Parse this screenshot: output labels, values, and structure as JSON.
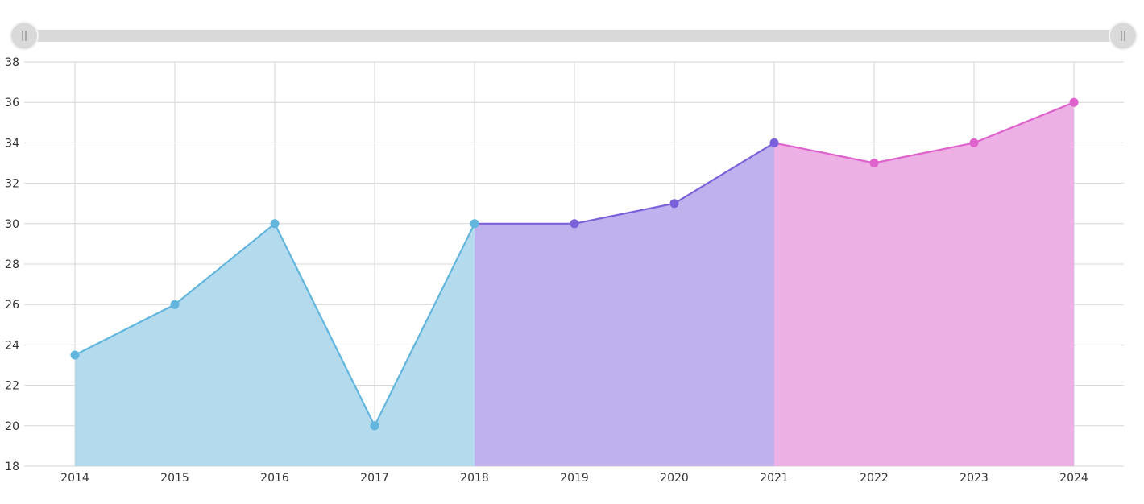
{
  "chart_data": {
    "type": "area",
    "x": [
      "2014",
      "2015",
      "2016",
      "2017",
      "2018",
      "2019",
      "2020",
      "2021",
      "2022",
      "2023",
      "2024"
    ],
    "values": [
      23.5,
      26,
      30,
      20,
      30,
      30,
      31,
      34,
      33,
      34,
      36
    ],
    "segments": [
      {
        "from": "2014",
        "to": "2018",
        "color": "#62b5dc",
        "fill": "#b3daed"
      },
      {
        "from": "2018",
        "to": "2021",
        "color": "#7b61d9",
        "fill": "#beb1ed"
      },
      {
        "from": "2021",
        "to": "2024",
        "color": "#df62cc",
        "fill": "#ecb0e5"
      }
    ],
    "ylim": [
      18,
      38
    ],
    "yticks": [
      "18",
      "20",
      "22",
      "24",
      "26",
      "28",
      "30",
      "32",
      "34",
      "36",
      "38"
    ],
    "title": "",
    "xlabel": "",
    "ylabel": "",
    "grid": true,
    "scrollbar": {
      "range_start": 0,
      "range_end": 1
    }
  }
}
